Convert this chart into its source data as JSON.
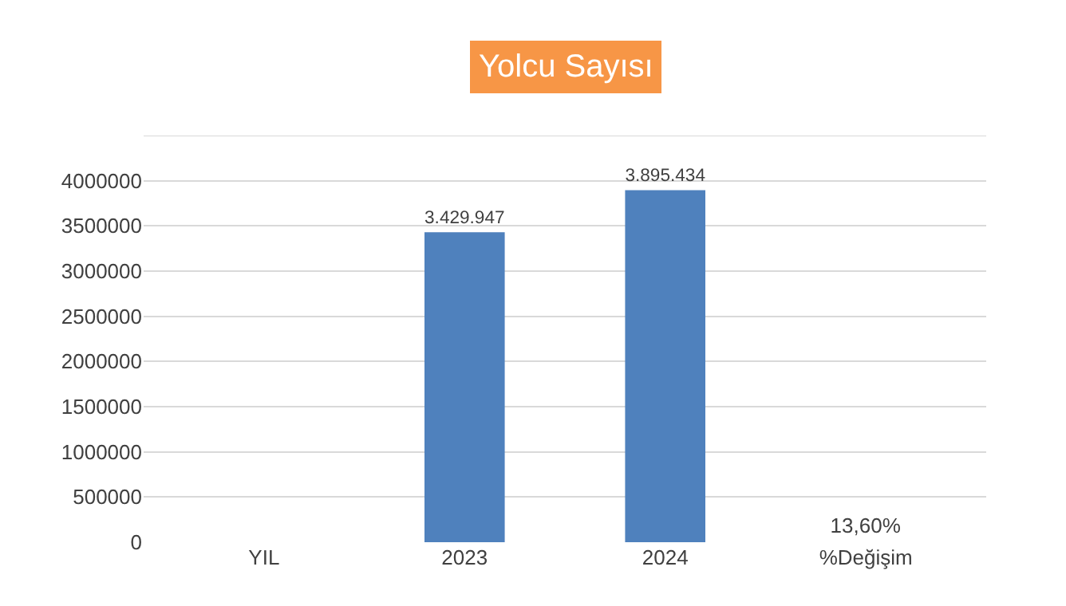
{
  "chart_data": {
    "type": "bar",
    "title": "Yolcu Sayısı",
    "categories": [
      "YIL",
      "2023",
      "2024",
      "%Değişim"
    ],
    "values": [
      null,
      3429947,
      3895434,
      13.6
    ],
    "value_labels": [
      null,
      "3.429.947",
      "3.895.434",
      "13,60%"
    ],
    "color": "#4f81bd",
    "ylim": [
      0,
      4500000
    ],
    "yticks": [
      0,
      500000,
      1000000,
      1500000,
      2000000,
      2500000,
      3000000,
      3500000,
      4000000,
      {
        "value": 4500000,
        "label": null
      }
    ],
    "grid": "y"
  }
}
